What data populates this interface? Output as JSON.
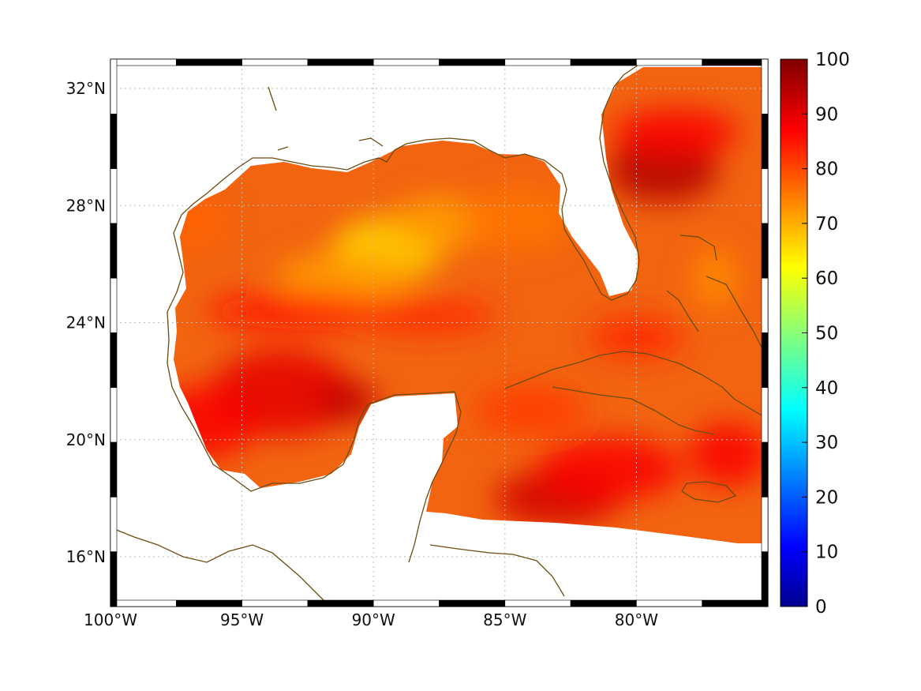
{
  "map": {
    "type": "heatmap",
    "projection": "equirectangular",
    "lon_range": [
      -100,
      -75
    ],
    "lat_range": [
      14.3,
      33
    ],
    "x_ticks": [
      {
        "lon": -100,
        "label": "100°W"
      },
      {
        "lon": -95,
        "label": "95°W"
      },
      {
        "lon": -90,
        "label": "90°W"
      },
      {
        "lon": -85,
        "label": "85°W"
      },
      {
        "lon": -80,
        "label": "80°W"
      }
    ],
    "y_ticks": [
      {
        "lat": 32,
        "label": "32°N"
      },
      {
        "lat": 28,
        "label": "28°N"
      },
      {
        "lat": 24,
        "label": "24°N"
      },
      {
        "lat": 20,
        "label": "20°N"
      },
      {
        "lat": 16,
        "label": "16°N"
      }
    ],
    "grid": "dotted",
    "coastline_color": "#6b4c12",
    "region": "Gulf of Mexico and western Caribbean"
  },
  "colorbar": {
    "colormap": "jet",
    "min": 0,
    "max": 100,
    "ticks": [
      "0",
      "10",
      "20",
      "30",
      "40",
      "50",
      "60",
      "70",
      "80",
      "90",
      "100"
    ]
  },
  "chart_data": {
    "type": "heatmap",
    "value_range": [
      0,
      100
    ],
    "typical_values": [
      {
        "region": "central Gulf of Mexico",
        "value": 75
      },
      {
        "region": "Gulf near 26.5°N 89.5°W (minimum)",
        "value": 66
      },
      {
        "region": "southwest Gulf / Bay of Campeche",
        "value": 88
      },
      {
        "region": "Atlantic east of Florida near 29°N 78°W (maximum)",
        "value": 97
      },
      {
        "region": "western Caribbean south of Cuba",
        "value": 88
      },
      {
        "region": "Florida Straits",
        "value": 82
      }
    ]
  }
}
